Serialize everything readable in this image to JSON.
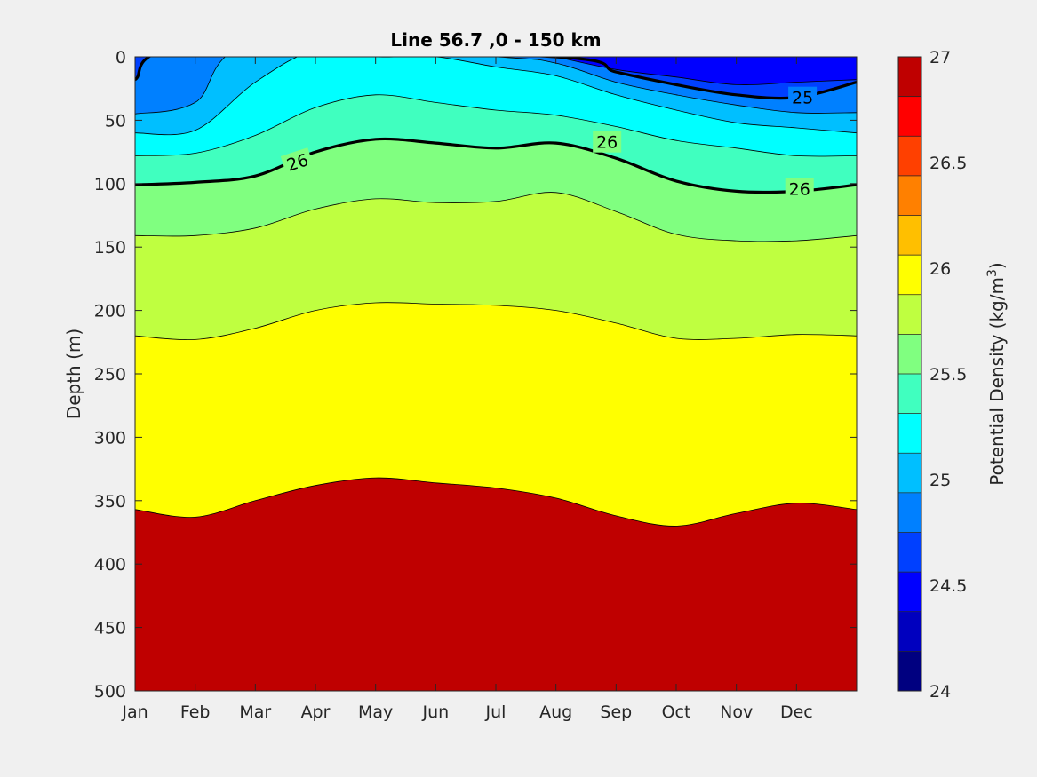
{
  "chart_data": {
    "type": "contour",
    "title": "Line 56.7 ,0 - 150 km",
    "xlabel": "",
    "ylabel": "Depth (m)",
    "x_categories": [
      "Jan",
      "Feb",
      "Mar",
      "Apr",
      "May",
      "Jun",
      "Jul",
      "Aug",
      "Sep",
      "Oct",
      "Nov",
      "Dec"
    ],
    "y_ticks": [
      0,
      50,
      100,
      150,
      200,
      250,
      300,
      350,
      400,
      450,
      500
    ],
    "ylim": [
      0,
      500
    ],
    "y_reversed": true,
    "colorbar": {
      "label": "Potential Density (kg/m",
      "label_sup": "3",
      "label_close": ")",
      "ticks": [
        "24",
        "24.5",
        "25",
        "25.5",
        "26",
        "26.5",
        "27"
      ],
      "range": [
        24,
        27
      ],
      "step": 0.25,
      "colors": [
        "#000080",
        "#0000bf",
        "#0000ff",
        "#0040ff",
        "#0080ff",
        "#00bfff",
        "#00ffff",
        "#40ffbf",
        "#80ff80",
        "#bfff40",
        "#ffff00",
        "#ffbf00",
        "#ff8000",
        "#ff4000",
        "#ff0000",
        "#bf0000"
      ]
    },
    "contour_labels": [
      {
        "text": "26",
        "month": 2.7,
        "depth": 83
      },
      {
        "text": "26",
        "month": 7.85,
        "depth": 67
      },
      {
        "text": "26",
        "month": 11.05,
        "depth": 104
      },
      {
        "text": "25",
        "month": 11.1,
        "depth": 32
      }
    ],
    "isolines": [
      {
        "level": 24.75,
        "depths": [
          null,
          null,
          null,
          null,
          null,
          null,
          null,
          0,
          10,
          16,
          22,
          20,
          18
        ]
      },
      {
        "level": 25.0,
        "depths": [
          18,
          -8,
          null,
          null,
          null,
          null,
          null,
          0,
          12,
          22,
          30,
          32,
          20
        ]
      },
      {
        "level": 25.25,
        "depths": [
          45,
          36,
          -10,
          null,
          null,
          null,
          0,
          5,
          20,
          30,
          38,
          44,
          44
        ]
      },
      {
        "level": 25.5,
        "depths": [
          60,
          58,
          20,
          -5,
          0,
          0,
          8,
          15,
          30,
          42,
          52,
          56,
          60
        ]
      },
      {
        "level": 25.75,
        "depths": [
          78,
          76,
          62,
          40,
          30,
          36,
          42,
          46,
          55,
          66,
          72,
          78,
          78
        ]
      },
      {
        "level": 26.0,
        "depths": [
          101,
          99,
          94,
          75,
          65,
          68,
          72,
          68,
          80,
          98,
          106,
          106,
          101
        ]
      },
      {
        "level": 26.25,
        "depths": [
          141,
          141,
          135,
          120,
          112,
          115,
          114,
          107,
          122,
          140,
          145,
          145,
          141
        ]
      },
      {
        "level": 26.5,
        "depths": [
          220,
          223,
          214,
          200,
          194,
          195,
          196,
          200,
          210,
          222,
          222,
          219,
          220
        ]
      },
      {
        "level": 26.75,
        "depths": [
          357,
          363,
          350,
          338,
          332,
          336,
          340,
          348,
          362,
          370,
          360,
          352,
          357
        ]
      }
    ]
  }
}
